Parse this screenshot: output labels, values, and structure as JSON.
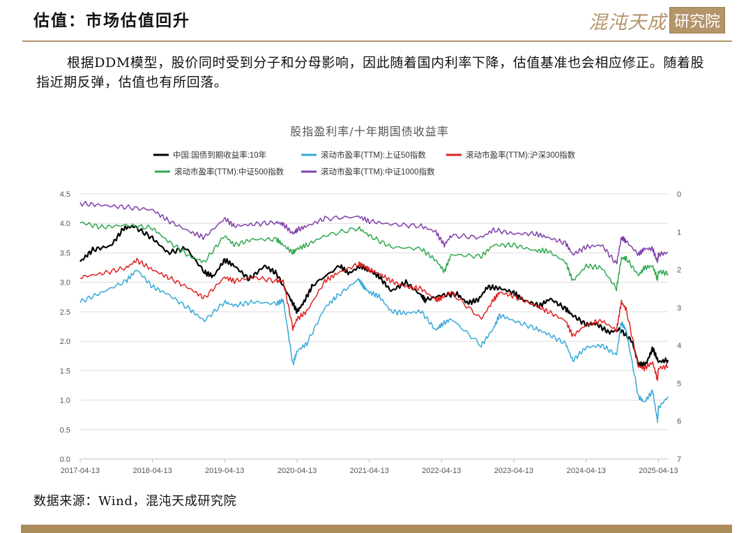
{
  "page": {
    "title": "估值：市场估值回升",
    "logo_script": "混沌天成",
    "logo_box": "研究院",
    "paragraph": "根据DDM模型，股价同时受到分子和分母影响，因此随着国内利率下降，估值基准也会相应修正。随着股指近期反弹，估值也有所回落。",
    "source": "数据来源：Wind，混沌天成研究院"
  },
  "chart_data": {
    "type": "line",
    "title": "股指盈利率/十年期国债收益率",
    "x_ticks": [
      "2017-04-13",
      "2018-04-13",
      "2019-04-13",
      "2020-04-13",
      "2021-04-13",
      "2022-04-13",
      "2023-04-13",
      "2024-04-13",
      "2025-04-13"
    ],
    "x_range": [
      "2017-04-13",
      "2025-05-31"
    ],
    "left_axis": {
      "min": 0,
      "max": 4.5,
      "ticks": [
        "0.0",
        "0.5",
        "1.0",
        "1.5",
        "2.0",
        "2.5",
        "3.0",
        "3.5",
        "4.0",
        "4.5"
      ]
    },
    "right_axis": {
      "min": 0,
      "max": 7,
      "reversed": true,
      "ticks": [
        "0",
        "1",
        "2",
        "3",
        "4",
        "5",
        "6",
        "7"
      ]
    },
    "grid": true,
    "legend_placement": "top",
    "series": [
      {
        "name": "中国:国债到期收益率:10年",
        "color": "#000000",
        "axis": "left",
        "points": [
          [
            "2017-04-13",
            3.35
          ],
          [
            "2017-06-15",
            3.55
          ],
          [
            "2017-09-15",
            3.62
          ],
          [
            "2017-11-20",
            3.92
          ],
          [
            "2018-01-10",
            3.95
          ],
          [
            "2018-04-13",
            3.75
          ],
          [
            "2018-07-01",
            3.5
          ],
          [
            "2018-10-01",
            3.58
          ],
          [
            "2019-01-02",
            3.17
          ],
          [
            "2019-02-15",
            3.1
          ],
          [
            "2019-04-13",
            3.38
          ],
          [
            "2019-06-01",
            3.28
          ],
          [
            "2019-08-15",
            3.05
          ],
          [
            "2019-11-01",
            3.28
          ],
          [
            "2019-12-31",
            3.15
          ],
          [
            "2020-03-10",
            2.72
          ],
          [
            "2020-04-13",
            2.5
          ],
          [
            "2020-05-15",
            2.65
          ],
          [
            "2020-07-01",
            2.95
          ],
          [
            "2020-11-15",
            3.28
          ],
          [
            "2020-12-31",
            3.15
          ],
          [
            "2021-03-01",
            3.28
          ],
          [
            "2021-04-13",
            3.2
          ],
          [
            "2021-06-01",
            3.1
          ],
          [
            "2021-08-01",
            2.85
          ],
          [
            "2021-10-15",
            3.0
          ],
          [
            "2021-12-31",
            2.78
          ],
          [
            "2022-01-20",
            2.7
          ],
          [
            "2022-04-13",
            2.78
          ],
          [
            "2022-07-01",
            2.8
          ],
          [
            "2022-08-20",
            2.65
          ],
          [
            "2022-10-15",
            2.7
          ],
          [
            "2022-12-01",
            2.92
          ],
          [
            "2023-02-01",
            2.9
          ],
          [
            "2023-04-13",
            2.82
          ],
          [
            "2023-06-01",
            2.7
          ],
          [
            "2023-08-20",
            2.6
          ],
          [
            "2023-10-15",
            2.72
          ],
          [
            "2023-12-31",
            2.55
          ],
          [
            "2024-02-01",
            2.45
          ],
          [
            "2024-04-13",
            2.28
          ],
          [
            "2024-06-01",
            2.3
          ],
          [
            "2024-08-05",
            2.15
          ],
          [
            "2024-10-01",
            2.2
          ],
          [
            "2024-12-01",
            2.0
          ],
          [
            "2025-01-02",
            1.6
          ],
          [
            "2025-02-10",
            1.62
          ],
          [
            "2025-03-15",
            1.88
          ],
          [
            "2025-04-13",
            1.65
          ],
          [
            "2025-05-31",
            1.68
          ]
        ]
      },
      {
        "name": "滚动市盈率(TTM):上证50指数",
        "color": "#36a8d8",
        "axis": "right",
        "points": [
          [
            "2017-04-13",
            2.85
          ],
          [
            "2017-08-01",
            2.6
          ],
          [
            "2017-12-01",
            2.3
          ],
          [
            "2018-01-24",
            2.0
          ],
          [
            "2018-04-13",
            2.45
          ],
          [
            "2018-07-01",
            2.65
          ],
          [
            "2018-10-20",
            3.05
          ],
          [
            "2018-12-31",
            3.35
          ],
          [
            "2019-04-13",
            2.85
          ],
          [
            "2019-06-01",
            2.95
          ],
          [
            "2019-09-01",
            2.85
          ],
          [
            "2019-12-31",
            2.9
          ],
          [
            "2020-02-03",
            2.8
          ],
          [
            "2020-03-23",
            4.5
          ],
          [
            "2020-04-13",
            4.15
          ],
          [
            "2020-06-01",
            3.95
          ],
          [
            "2020-09-01",
            3.0
          ],
          [
            "2020-11-01",
            2.7
          ],
          [
            "2021-02-18",
            2.25
          ],
          [
            "2021-03-15",
            2.45
          ],
          [
            "2021-04-13",
            2.6
          ],
          [
            "2021-06-01",
            2.7
          ],
          [
            "2021-08-01",
            3.1
          ],
          [
            "2021-10-15",
            3.15
          ],
          [
            "2021-12-31",
            3.1
          ],
          [
            "2022-03-15",
            3.6
          ],
          [
            "2022-04-13",
            3.45
          ],
          [
            "2022-06-01",
            3.3
          ],
          [
            "2022-10-31",
            4.0
          ],
          [
            "2022-12-31",
            3.55
          ],
          [
            "2023-02-01",
            3.2
          ],
          [
            "2023-04-13",
            3.35
          ],
          [
            "2023-08-01",
            3.55
          ],
          [
            "2023-10-01",
            3.7
          ],
          [
            "2023-12-31",
            3.95
          ],
          [
            "2024-02-05",
            4.4
          ],
          [
            "2024-04-13",
            4.05
          ],
          [
            "2024-07-01",
            4.0
          ],
          [
            "2024-09-13",
            4.25
          ],
          [
            "2024-10-08",
            3.4
          ],
          [
            "2024-11-01",
            3.6
          ],
          [
            "2025-01-02",
            5.35
          ],
          [
            "2025-02-01",
            5.5
          ],
          [
            "2025-03-15",
            5.2
          ],
          [
            "2025-04-08",
            6.0
          ],
          [
            "2025-04-13",
            5.65
          ],
          [
            "2025-05-31",
            5.35
          ]
        ]
      },
      {
        "name": "滚动市盈率(TTM):沪深300指数",
        "color": "#e02020",
        "axis": "right",
        "points": [
          [
            "2017-04-13",
            2.2
          ],
          [
            "2017-08-01",
            2.1
          ],
          [
            "2017-12-01",
            1.95
          ],
          [
            "2018-01-24",
            1.75
          ],
          [
            "2018-04-13",
            2.0
          ],
          [
            "2018-07-01",
            2.2
          ],
          [
            "2018-10-20",
            2.5
          ],
          [
            "2018-12-31",
            2.75
          ],
          [
            "2019-04-13",
            2.2
          ],
          [
            "2019-06-01",
            2.3
          ],
          [
            "2019-09-01",
            2.2
          ],
          [
            "2019-12-31",
            2.3
          ],
          [
            "2020-02-03",
            2.3
          ],
          [
            "2020-03-23",
            3.55
          ],
          [
            "2020-04-13",
            3.3
          ],
          [
            "2020-06-01",
            3.1
          ],
          [
            "2020-09-01",
            2.3
          ],
          [
            "2020-11-01",
            2.1
          ],
          [
            "2021-02-18",
            1.85
          ],
          [
            "2021-03-15",
            1.9
          ],
          [
            "2021-04-13",
            2.0
          ],
          [
            "2021-06-01",
            2.1
          ],
          [
            "2021-08-01",
            2.3
          ],
          [
            "2021-10-15",
            2.45
          ],
          [
            "2021-12-31",
            2.5
          ],
          [
            "2022-03-15",
            2.8
          ],
          [
            "2022-04-13",
            2.75
          ],
          [
            "2022-06-01",
            2.6
          ],
          [
            "2022-10-31",
            3.3
          ],
          [
            "2022-12-31",
            2.8
          ],
          [
            "2023-02-01",
            2.6
          ],
          [
            "2023-04-13",
            2.7
          ],
          [
            "2023-08-01",
            2.95
          ],
          [
            "2023-10-01",
            3.1
          ],
          [
            "2023-12-31",
            3.35
          ],
          [
            "2024-02-05",
            3.75
          ],
          [
            "2024-04-13",
            3.45
          ],
          [
            "2024-07-01",
            3.35
          ],
          [
            "2024-09-13",
            3.6
          ],
          [
            "2024-10-08",
            2.85
          ],
          [
            "2024-11-01",
            3.05
          ],
          [
            "2025-01-02",
            4.55
          ],
          [
            "2025-02-01",
            4.6
          ],
          [
            "2025-03-15",
            4.45
          ],
          [
            "2025-04-08",
            4.9
          ],
          [
            "2025-04-13",
            4.6
          ],
          [
            "2025-05-31",
            4.55
          ]
        ]
      },
      {
        "name": "滚动市盈率(TTM):中证500指数",
        "color": "#2fa84f",
        "axis": "right",
        "points": [
          [
            "2017-04-13",
            0.75
          ],
          [
            "2017-08-01",
            0.88
          ],
          [
            "2017-12-01",
            0.82
          ],
          [
            "2018-04-13",
            0.9
          ],
          [
            "2018-07-01",
            1.25
          ],
          [
            "2018-10-20",
            1.65
          ],
          [
            "2018-12-31",
            1.8
          ],
          [
            "2019-04-13",
            1.1
          ],
          [
            "2019-06-01",
            1.35
          ],
          [
            "2019-09-01",
            1.2
          ],
          [
            "2019-12-31",
            1.2
          ],
          [
            "2020-02-03",
            1.35
          ],
          [
            "2020-03-23",
            1.55
          ],
          [
            "2020-04-13",
            1.45
          ],
          [
            "2020-06-01",
            1.35
          ],
          [
            "2020-09-01",
            1.1
          ],
          [
            "2021-02-18",
            0.9
          ],
          [
            "2021-04-13",
            1.1
          ],
          [
            "2021-08-01",
            1.4
          ],
          [
            "2021-12-31",
            1.45
          ],
          [
            "2022-03-15",
            1.75
          ],
          [
            "2022-04-27",
            2.05
          ],
          [
            "2022-06-01",
            1.6
          ],
          [
            "2022-10-31",
            1.65
          ],
          [
            "2022-12-31",
            1.35
          ],
          [
            "2023-04-13",
            1.35
          ],
          [
            "2023-08-01",
            1.5
          ],
          [
            "2023-10-01",
            1.5
          ],
          [
            "2023-12-31",
            1.8
          ],
          [
            "2024-02-05",
            2.3
          ],
          [
            "2024-04-13",
            1.9
          ],
          [
            "2024-07-01",
            1.95
          ],
          [
            "2024-09-13",
            2.5
          ],
          [
            "2024-10-08",
            1.7
          ],
          [
            "2024-11-01",
            1.7
          ],
          [
            "2025-01-02",
            2.15
          ],
          [
            "2025-02-01",
            1.95
          ],
          [
            "2025-03-15",
            1.9
          ],
          [
            "2025-04-08",
            2.25
          ],
          [
            "2025-04-13",
            2.05
          ],
          [
            "2025-05-31",
            2.1
          ]
        ]
      },
      {
        "name": "滚动市盈率(TTM):中证1000指数",
        "color": "#7f3fa8",
        "axis": "right",
        "points": [
          [
            "2017-04-13",
            0.25
          ],
          [
            "2017-08-01",
            0.3
          ],
          [
            "2017-12-01",
            0.35
          ],
          [
            "2018-04-13",
            0.42
          ],
          [
            "2018-07-01",
            0.7
          ],
          [
            "2018-10-20",
            1.0
          ],
          [
            "2018-12-31",
            1.15
          ],
          [
            "2019-04-13",
            0.65
          ],
          [
            "2019-06-01",
            0.85
          ],
          [
            "2019-09-01",
            0.8
          ],
          [
            "2019-12-31",
            0.75
          ],
          [
            "2020-02-03",
            0.8
          ],
          [
            "2020-03-23",
            1.05
          ],
          [
            "2020-04-13",
            0.95
          ],
          [
            "2020-06-01",
            0.85
          ],
          [
            "2020-09-01",
            0.65
          ],
          [
            "2021-02-18",
            0.6
          ],
          [
            "2021-04-13",
            0.72
          ],
          [
            "2021-08-01",
            0.8
          ],
          [
            "2021-12-31",
            0.85
          ],
          [
            "2022-03-15",
            1.0
          ],
          [
            "2022-04-27",
            1.35
          ],
          [
            "2022-06-01",
            1.1
          ],
          [
            "2022-10-31",
            1.15
          ],
          [
            "2022-12-31",
            0.95
          ],
          [
            "2023-04-13",
            1.05
          ],
          [
            "2023-08-01",
            1.05
          ],
          [
            "2023-10-01",
            1.15
          ],
          [
            "2023-12-31",
            1.3
          ],
          [
            "2024-02-05",
            1.6
          ],
          [
            "2024-04-13",
            1.4
          ],
          [
            "2024-07-01",
            1.35
          ],
          [
            "2024-09-13",
            1.85
          ],
          [
            "2024-10-08",
            1.15
          ],
          [
            "2024-11-01",
            1.25
          ],
          [
            "2025-01-02",
            1.6
          ],
          [
            "2025-02-01",
            1.45
          ],
          [
            "2025-03-15",
            1.45
          ],
          [
            "2025-04-08",
            1.8
          ],
          [
            "2025-04-13",
            1.6
          ],
          [
            "2025-05-31",
            1.55
          ]
        ]
      }
    ]
  }
}
